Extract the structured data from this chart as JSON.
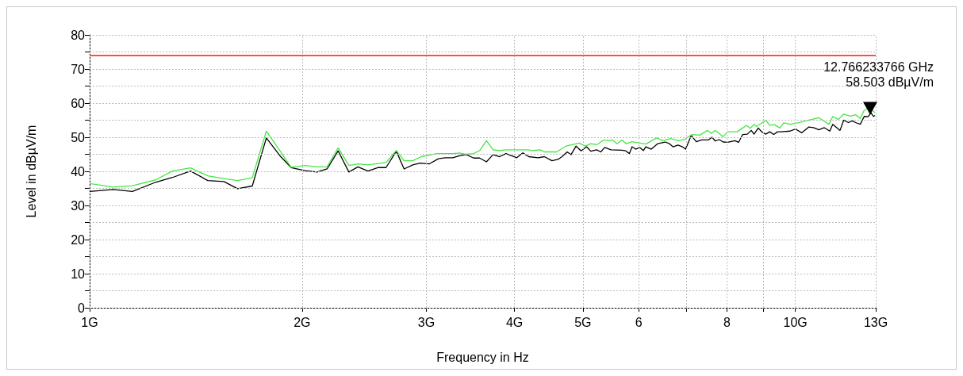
{
  "chart_data": {
    "type": "line",
    "xlabel": "Frequency in Hz",
    "ylabel": "Level in dBµV/m",
    "log": "x",
    "grid": true,
    "marker": "none",
    "line_style": "solid",
    "xlim": [
      1,
      13
    ],
    "xticks": [
      {
        "value": 1,
        "label": "1G"
      },
      {
        "value": 2,
        "label": "2G"
      },
      {
        "value": 3,
        "label": "3G"
      },
      {
        "value": 4,
        "label": "4G"
      },
      {
        "value": 5,
        "label": "5G"
      },
      6,
      {
        "value": 7,
        "label": null
      },
      8,
      {
        "value": 9,
        "label": null
      },
      {
        "value": 10,
        "label": "10G"
      },
      {
        "value": 13,
        "label": "13G"
      }
    ],
    "ylim": [
      0,
      80
    ],
    "yticks": [
      0,
      {
        "value": 5,
        "label": null
      },
      10,
      {
        "value": 15,
        "label": null
      },
      20,
      {
        "value": 25,
        "label": null
      },
      30,
      {
        "value": 35,
        "label": null
      },
      40,
      {
        "value": 45,
        "label": null
      },
      50,
      {
        "value": 55,
        "label": null
      },
      60,
      {
        "value": 65,
        "label": null
      },
      70,
      {
        "value": 75,
        "label": null
      },
      80
    ],
    "ref_lines": [
      {
        "axis": "y",
        "value": 74,
        "color": "#ff4d4d"
      }
    ],
    "annotations": [
      {
        "text": "12.766233766 GHz\n58.503 dBµV/m",
        "x": 12.766233766,
        "y": 58.503
      }
    ],
    "series": [
      {
        "color": "#000000",
        "x": [
          1.0,
          1.08,
          1.15,
          1.24,
          1.31,
          1.39,
          1.47,
          1.55,
          1.62,
          1.7,
          1.78,
          1.86,
          1.93,
          2.02,
          2.1,
          2.17,
          2.25,
          2.33,
          2.4,
          2.48,
          2.56,
          2.63,
          2.72,
          2.79,
          2.87,
          2.94,
          3.03,
          3.12,
          3.19,
          3.27,
          3.35,
          3.42,
          3.5,
          3.57,
          3.65,
          3.73,
          3.81,
          3.89,
          4.03,
          4.11,
          4.19,
          4.32,
          4.41,
          4.52,
          4.61,
          4.67,
          4.75,
          4.81,
          4.89,
          4.97,
          5.06,
          5.13,
          5.23,
          5.3,
          5.37,
          5.48,
          5.68,
          5.75,
          5.82,
          5.87,
          5.94,
          6.02,
          6.09,
          6.14,
          6.25,
          6.38,
          6.54,
          6.63,
          6.71,
          6.82,
          6.92,
          6.99,
          7.12,
          7.24,
          7.37,
          7.53,
          7.62,
          7.7,
          7.8,
          7.9,
          8.02,
          8.21,
          8.31,
          8.42,
          8.55,
          8.66,
          8.74,
          8.86,
          8.97,
          9.08,
          9.2,
          9.32,
          9.44,
          9.56,
          9.83,
          10.01,
          10.21,
          10.45,
          10.61,
          10.8,
          10.99,
          11.19,
          11.3,
          11.57,
          11.71,
          11.89,
          12.05,
          12.17,
          12.36,
          12.52,
          12.68,
          12.8,
          12.9,
          12.97
        ],
        "values": [
          34.1,
          34.7,
          34.1,
          36.8,
          38.2,
          40.1,
          37.3,
          37.0,
          34.9,
          35.7,
          49.8,
          44.6,
          41.1,
          40.2,
          39.8,
          40.7,
          46.0,
          39.8,
          41.3,
          40.1,
          41.1,
          41.1,
          45.9,
          40.7,
          41.9,
          42.4,
          42.2,
          43.7,
          44.0,
          44.0,
          44.6,
          44.9,
          43.9,
          43.9,
          42.8,
          44.9,
          44.3,
          45.2,
          44.0,
          45.4,
          44.3,
          44.0,
          44.3,
          43.1,
          43.5,
          44.3,
          45.7,
          44.9,
          47.4,
          46.0,
          47.2,
          45.9,
          46.3,
          45.7,
          47.0,
          46.3,
          46.2,
          46.0,
          45.2,
          47.2,
          46.5,
          47.0,
          46.1,
          47.2,
          46.5,
          48.1,
          48.6,
          48.1,
          47.2,
          47.7,
          47.2,
          46.5,
          50.5,
          48.7,
          49.2,
          49.2,
          50.0,
          48.9,
          49.3,
          48.6,
          48.5,
          49.0,
          48.5,
          50.8,
          50.9,
          52.0,
          50.9,
          52.7,
          51.5,
          50.9,
          51.6,
          50.8,
          51.6,
          51.6,
          51.8,
          52.4,
          51.3,
          53.0,
          52.8,
          52.2,
          52.8,
          51.8,
          53.8,
          52.0,
          55.0,
          54.3,
          54.8,
          54.3,
          53.8,
          56.1,
          56.0,
          57.2,
          56.1,
          56.4
        ]
      },
      {
        "color": "#44e844",
        "x": [
          1.0,
          1.08,
          1.15,
          1.24,
          1.31,
          1.39,
          1.47,
          1.55,
          1.62,
          1.7,
          1.78,
          1.86,
          1.93,
          2.02,
          2.1,
          2.17,
          2.25,
          2.33,
          2.4,
          2.48,
          2.63,
          2.72,
          2.79,
          2.87,
          2.95,
          3.11,
          3.27,
          3.34,
          3.41,
          3.5,
          3.57,
          3.65,
          3.73,
          3.81,
          3.89,
          4.18,
          4.25,
          4.35,
          4.41,
          4.59,
          4.73,
          4.94,
          5.04,
          5.13,
          5.23,
          5.35,
          5.44,
          5.51,
          5.59,
          5.68,
          5.76,
          5.87,
          6.02,
          6.14,
          6.36,
          6.49,
          6.66,
          6.83,
          6.97,
          7.14,
          7.32,
          7.51,
          7.6,
          7.7,
          7.9,
          8.02,
          8.27,
          8.42,
          8.53,
          8.63,
          8.74,
          8.81,
          8.97,
          9.08,
          9.2,
          9.34,
          9.51,
          9.63,
          9.83,
          10.08,
          10.45,
          10.8,
          11.16,
          11.3,
          11.51,
          11.71,
          11.95,
          12.17,
          12.36,
          12.52,
          12.71,
          12.84,
          12.97
        ],
        "values": [
          36.4,
          35.4,
          35.8,
          37.5,
          40.1,
          41.0,
          38.7,
          37.9,
          37.3,
          38.1,
          51.8,
          46.1,
          41.2,
          41.7,
          41.3,
          41.3,
          46.9,
          41.7,
          42.2,
          41.9,
          42.6,
          46.1,
          43.1,
          43.1,
          44.3,
          45.2,
          45.2,
          45.4,
          45.0,
          45.2,
          46.1,
          49.0,
          46.3,
          46.1,
          46.3,
          46.3,
          46.1,
          46.3,
          45.7,
          45.7,
          47.4,
          48.3,
          47.4,
          48.1,
          47.8,
          49.2,
          49.0,
          49.2,
          48.1,
          49.2,
          48.1,
          48.7,
          48.3,
          48.0,
          49.8,
          49.0,
          49.6,
          49.0,
          49.4,
          50.8,
          50.6,
          52.0,
          51.1,
          52.0,
          50.2,
          51.6,
          51.6,
          52.7,
          53.5,
          52.6,
          53.8,
          53.2,
          54.2,
          55.0,
          53.5,
          53.7,
          52.7,
          54.2,
          53.8,
          54.2,
          55.0,
          55.7,
          53.8,
          56.1,
          55.2,
          56.8,
          56.2,
          56.6,
          55.5,
          57.9,
          58.6,
          57.9,
          57.2
        ]
      }
    ]
  }
}
